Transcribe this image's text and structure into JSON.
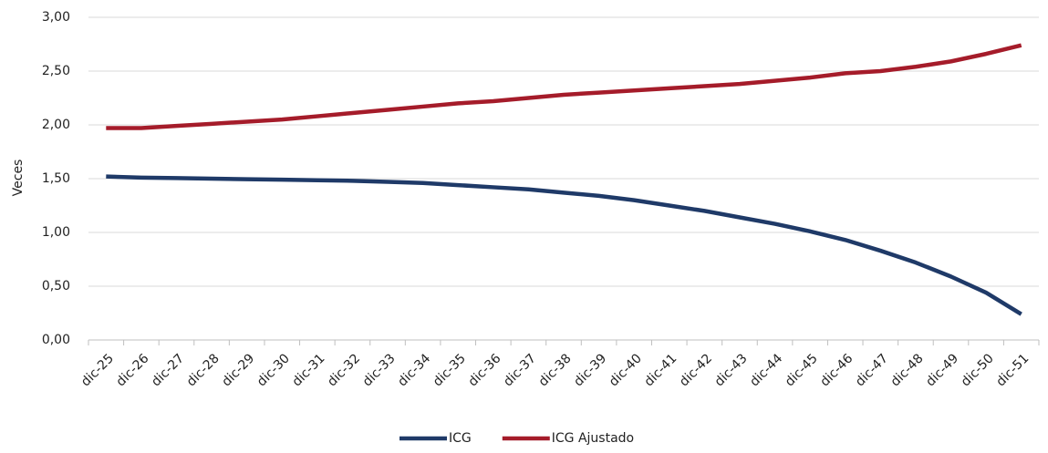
{
  "chart_data": {
    "type": "line",
    "y_label": "Veces",
    "categories": [
      "dic-25",
      "dic-26",
      "dic-27",
      "dic-28",
      "dic-29",
      "dic-30",
      "dic-31",
      "dic-32",
      "dic-33",
      "dic-34",
      "dic-35",
      "dic-36",
      "dic-37",
      "dic-38",
      "dic-39",
      "dic-40",
      "dic-41",
      "dic-42",
      "dic-43",
      "dic-44",
      "dic-45",
      "dic-46",
      "dic-47",
      "dic-48",
      "dic-49",
      "dic-50",
      "dic-51"
    ],
    "series": [
      {
        "name": "ICG",
        "color": "#1f3a68",
        "values": [
          1.52,
          1.51,
          1.505,
          1.5,
          1.495,
          1.49,
          1.485,
          1.48,
          1.47,
          1.46,
          1.44,
          1.42,
          1.4,
          1.37,
          1.34,
          1.3,
          1.25,
          1.2,
          1.14,
          1.08,
          1.01,
          0.93,
          0.83,
          0.72,
          0.59,
          0.44,
          0.24
        ]
      },
      {
        "name": "ICG Ajustado",
        "color": "#a51c2a",
        "values": [
          1.97,
          1.97,
          1.99,
          2.01,
          2.03,
          2.05,
          2.08,
          2.11,
          2.14,
          2.17,
          2.2,
          2.22,
          2.25,
          2.28,
          2.3,
          2.32,
          2.34,
          2.36,
          2.38,
          2.41,
          2.44,
          2.48,
          2.5,
          2.54,
          2.59,
          2.66,
          2.74
        ]
      }
    ],
    "ylim": [
      0,
      3
    ],
    "yticks": [
      {
        "value": 0,
        "label": "0,00"
      },
      {
        "value": 0.5,
        "label": "0,50"
      },
      {
        "value": 1,
        "label": "1,00"
      },
      {
        "value": 1.5,
        "label": "1,50"
      },
      {
        "value": 2,
        "label": "2,00"
      },
      {
        "value": 2.5,
        "label": "2,50"
      },
      {
        "value": 3,
        "label": "3,00"
      }
    ],
    "grid": true,
    "legend": "bottom"
  }
}
